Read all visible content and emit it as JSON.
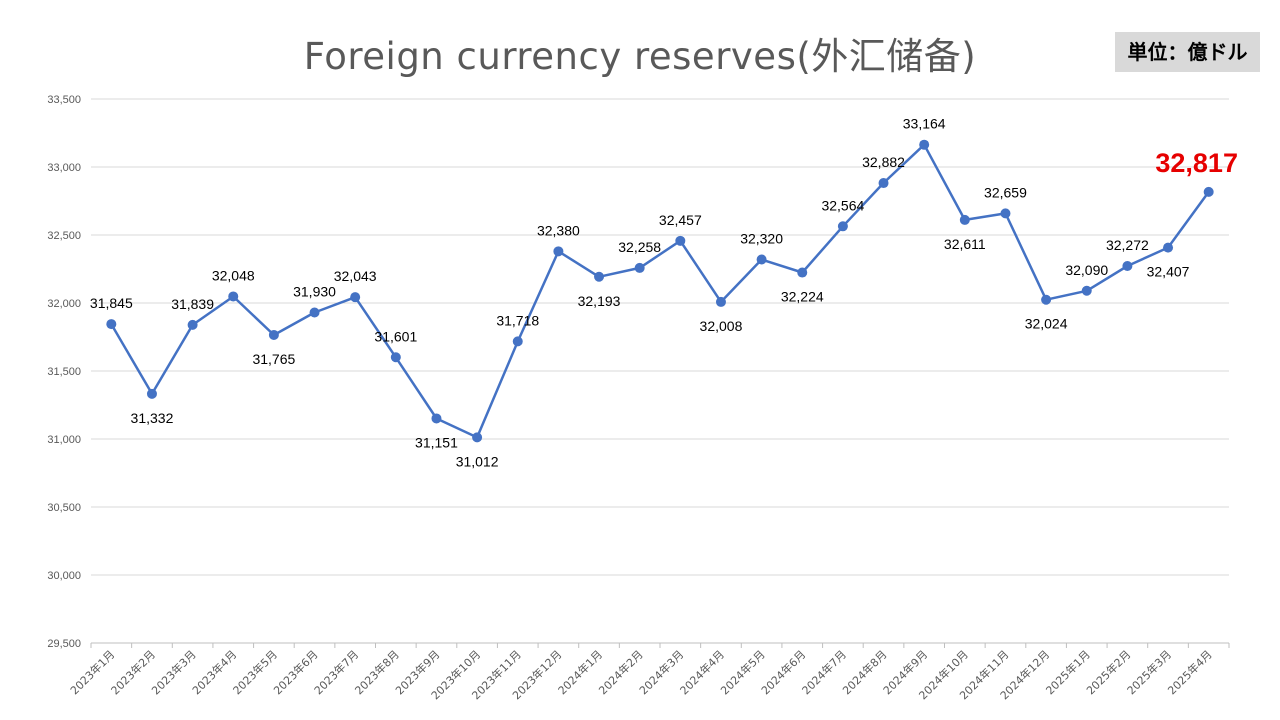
{
  "title": "Foreign currency reserves(外汇储备)",
  "unit_label": "単位：億ドル",
  "chart_data": {
    "type": "line",
    "title": "Foreign currency reserves(外汇储备)",
    "xlabel": "",
    "ylabel": "",
    "ylim": [
      29500,
      33500
    ],
    "y_ticks": [
      29500,
      30000,
      30500,
      31000,
      31500,
      32000,
      32500,
      33000,
      33500
    ],
    "y_tick_labels": [
      "29,500",
      "30,000",
      "30,500",
      "31,000",
      "31,500",
      "32,000",
      "32,500",
      "33,000",
      "33,500"
    ],
    "grid": true,
    "legend": "none",
    "line_color": "#4472c4",
    "highlight_color": "#e60000",
    "categories": [
      "2023年1月",
      "2023年2月",
      "2023年3月",
      "2023年4月",
      "2023年5月",
      "2023年6月",
      "2023年7月",
      "2023年8月",
      "2023年9月",
      "2023年10月",
      "2023年11月",
      "2023年12月",
      "2024年1月",
      "2024年2月",
      "2024年3月",
      "2024年4月",
      "2024年5月",
      "2024年6月",
      "2024年7月",
      "2024年8月",
      "2024年9月",
      "2024年10月",
      "2024年11月",
      "2024年12月",
      "2025年1月",
      "2025年2月",
      "2025年3月",
      "2025年4月"
    ],
    "series": [
      {
        "values": [
          31845,
          31332,
          31839,
          32048,
          31765,
          31930,
          32043,
          31601,
          31151,
          31012,
          31718,
          32380,
          32193,
          32258,
          32457,
          32008,
          32320,
          32224,
          32564,
          32882,
          33164,
          32611,
          32659,
          32024,
          32090,
          32272,
          32407,
          32817
        ],
        "labels": [
          "31,845",
          "31,332",
          "31,839",
          "32,048",
          "31,765",
          "31,930",
          "32,043",
          "31,601",
          "31,151",
          "31,012",
          "31,718",
          "32,380",
          "32,193",
          "32,258",
          "32,457",
          "32,008",
          "32,320",
          "32,224",
          "32,564",
          "32,882",
          "33,164",
          "32,611",
          "32,659",
          "32,024",
          "32,090",
          "32,272",
          "32,407",
          "32,817"
        ],
        "label_positions": [
          "above",
          "below",
          "above",
          "above",
          "below",
          "above",
          "above",
          "above",
          "below",
          "below",
          "above",
          "above",
          "below",
          "above",
          "above",
          "below",
          "above",
          "below",
          "above",
          "above",
          "above",
          "below",
          "above",
          "below",
          "above",
          "above",
          "below",
          "highlight"
        ]
      }
    ]
  }
}
